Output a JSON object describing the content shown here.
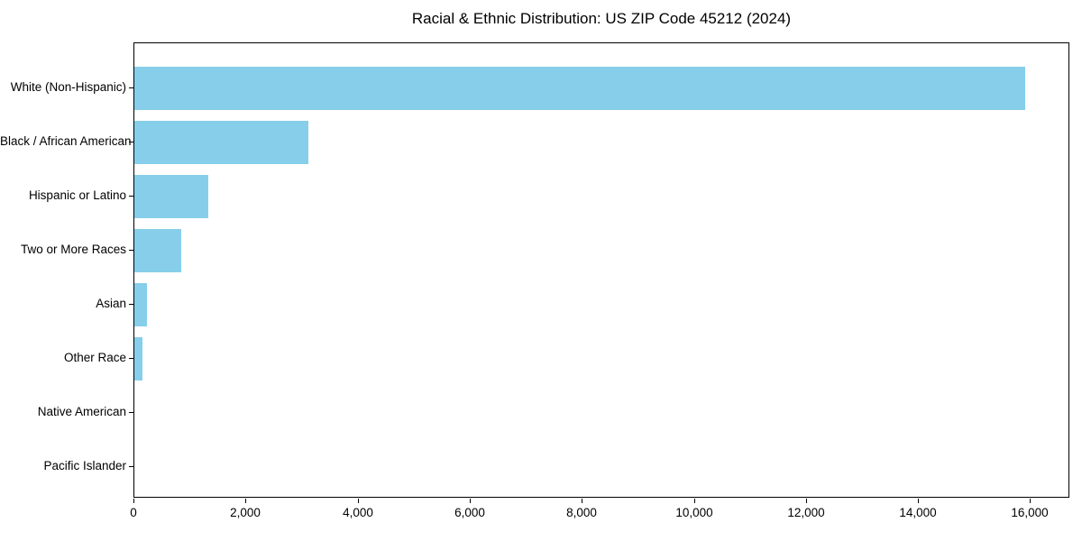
{
  "chart_data": {
    "type": "bar",
    "orientation": "horizontal",
    "title": "Racial & Ethnic Distribution: US ZIP Code 45212 (2024)",
    "xlabel": "",
    "ylabel": "",
    "categories": [
      "White (Non-Hispanic)",
      "Black / African American",
      "Hispanic or Latino",
      "Two or More Races",
      "Asian",
      "Other Race",
      "Native American",
      "Pacific Islander"
    ],
    "values": [
      15900,
      3100,
      1320,
      830,
      220,
      140,
      0,
      0
    ],
    "xlim": [
      0,
      16700
    ],
    "x_ticks": [
      0,
      2000,
      4000,
      6000,
      8000,
      10000,
      12000,
      14000,
      16000
    ],
    "x_tick_labels": [
      "0",
      "2,000",
      "4,000",
      "6,000",
      "8,000",
      "10,000",
      "12,000",
      "14,000",
      "16,000"
    ],
    "bar_color": "#87CEEB",
    "grid": false,
    "legend": null,
    "background_color": "#ffffff",
    "axis_color": "#000000",
    "text_color": "#000000"
  }
}
